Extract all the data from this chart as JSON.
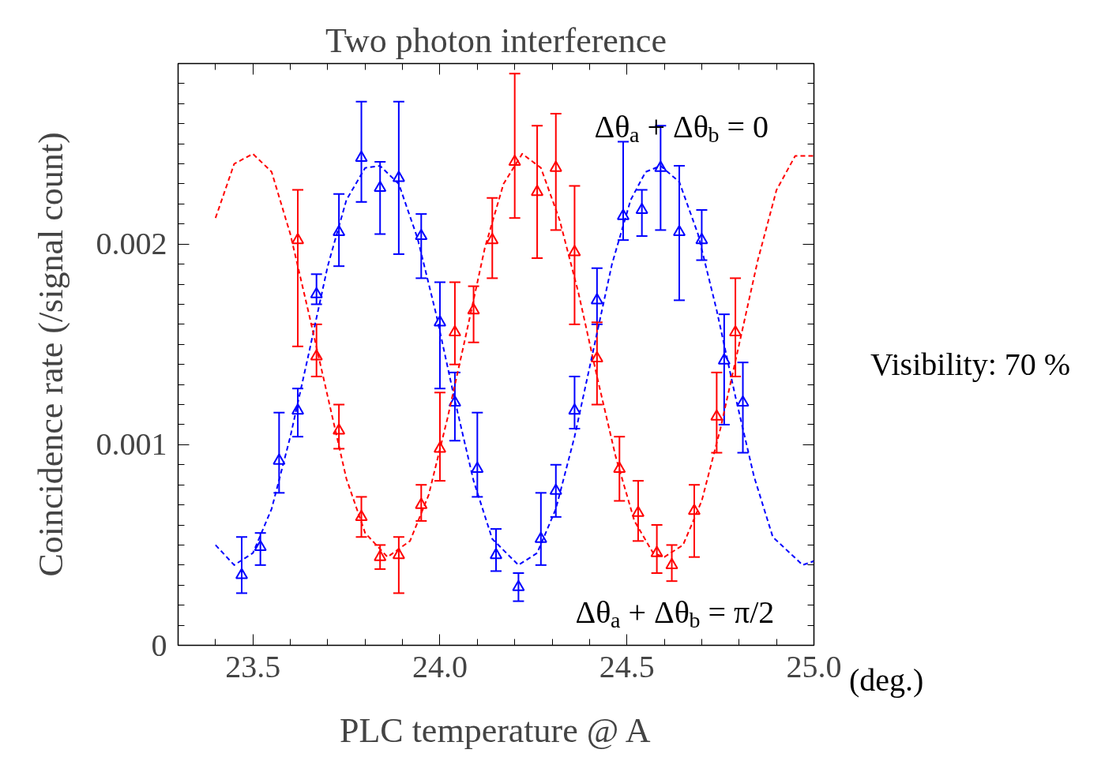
{
  "chart_data": {
    "type": "scatter",
    "title": "Two photon interference",
    "xlabel": "PLC temperature @ A",
    "ylabel": "Coincidence rate (/signal count)",
    "annotations": [
      "Δθ$_{a}$ + Δθ$_{b}$ = 0",
      "Δθ$_{a}$ + Δθ$_{b}$ = π/2",
      "Visibility: 70 %",
      "(deg.)"
    ],
    "xlim": [
      23.3,
      25.0
    ],
    "ylim": [
      0,
      0.0029
    ],
    "xticks": [
      {
        "value": 23.4,
        "label": null
      },
      23.5,
      {
        "value": 23.6,
        "label": null
      },
      {
        "value": 23.7,
        "label": null
      },
      {
        "value": 23.8,
        "label": null
      },
      {
        "value": 23.9,
        "label": null
      },
      {
        "value": 24.0,
        "label": "24.0"
      },
      {
        "value": 24.1,
        "label": null
      },
      {
        "value": 24.2,
        "label": null
      },
      {
        "value": 24.3,
        "label": null
      },
      {
        "value": 24.4,
        "label": null
      },
      24.5,
      {
        "value": 24.6,
        "label": null
      },
      {
        "value": 24.7,
        "label": null
      },
      {
        "value": 24.8,
        "label": null
      },
      {
        "value": 24.9,
        "label": null
      },
      {
        "value": 25.0,
        "label": "25.0"
      }
    ],
    "yticks": [
      0,
      {
        "value": 0.0001,
        "label": null
      },
      {
        "value": 0.0002,
        "label": null
      },
      {
        "value": 0.0003,
        "label": null
      },
      {
        "value": 0.0004,
        "label": null
      },
      {
        "value": 0.0005,
        "label": null
      },
      {
        "value": 0.0006,
        "label": null
      },
      {
        "value": 0.0007,
        "label": null
      },
      {
        "value": 0.0008,
        "label": null
      },
      {
        "value": 0.0009,
        "label": null
      },
      0.001,
      {
        "value": 0.0011,
        "label": null
      },
      {
        "value": 0.0012,
        "label": null
      },
      {
        "value": 0.0013,
        "label": null
      },
      {
        "value": 0.0014,
        "label": null
      },
      {
        "value": 0.0015,
        "label": null
      },
      {
        "value": 0.0016,
        "label": null
      },
      {
        "value": 0.0017,
        "label": null
      },
      {
        "value": 0.0018,
        "label": null
      },
      {
        "value": 0.0019,
        "label": null
      },
      0.002,
      {
        "value": 0.0021,
        "label": null
      },
      {
        "value": 0.0022,
        "label": null
      },
      {
        "value": 0.0023,
        "label": null
      },
      {
        "value": 0.0024,
        "label": null
      },
      {
        "value": 0.0025,
        "label": null
      },
      {
        "value": 0.0026,
        "label": null
      },
      {
        "value": 0.0027,
        "label": null
      },
      {
        "value": 0.0028,
        "label": null
      }
    ],
    "grid": false,
    "marker": "triangle",
    "series": [
      {
        "color": "#0000ff",
        "x": [
          23.47,
          23.52,
          23.57,
          23.62,
          23.67,
          23.73,
          23.79,
          23.84,
          23.89,
          23.95,
          24.0,
          24.04,
          24.1,
          24.15,
          24.21,
          24.27,
          24.31,
          24.36,
          24.42,
          24.49,
          24.54,
          24.59,
          24.64,
          24.7,
          24.76,
          24.81
        ],
        "values": [
          0.00035,
          0.00049,
          0.00092,
          0.00117,
          0.00175,
          0.00206,
          0.00243,
          0.00228,
          0.00233,
          0.00204,
          0.00161,
          0.00121,
          0.00088,
          0.00045,
          0.00029,
          0.00053,
          0.00077,
          0.00117,
          0.00172,
          0.00214,
          0.00217,
          0.00238,
          0.00206,
          0.00202,
          0.00142,
          0.00121
        ],
        "errors": [
          [
            0.00026,
            0.00054
          ],
          [
            0.0004,
            0.00056
          ],
          [
            0.00076,
            0.00116
          ],
          [
            0.00104,
            0.00128
          ],
          [
            0.0017,
            0.00185
          ],
          [
            0.00189,
            0.00225
          ],
          [
            0.00221,
            0.00271
          ],
          [
            0.00205,
            0.00241
          ],
          [
            0.00195,
            0.00271
          ],
          [
            0.00183,
            0.00215
          ],
          [
            0.00128,
            0.00181
          ],
          [
            0.00102,
            0.00136
          ],
          [
            0.00074,
            0.00116
          ],
          [
            0.00037,
            0.00058
          ],
          [
            0.00022,
            0.00036
          ],
          [
            0.0004,
            0.00076
          ],
          [
            0.00064,
            0.0009
          ],
          [
            0.00108,
            0.00134
          ],
          [
            0.0016,
            0.00188
          ],
          [
            0.00202,
            0.00251
          ],
          [
            0.00204,
            0.00227
          ],
          [
            0.00207,
            0.00259
          ],
          [
            0.00172,
            0.00239
          ],
          [
            0.00192,
            0.00217
          ],
          [
            0.0011,
            0.00165
          ],
          [
            0.00096,
            0.00141
          ]
        ]
      },
      {
        "color": "#ff0000",
        "x": [
          23.62,
          23.67,
          23.73,
          23.79,
          23.84,
          23.89,
          23.95,
          24.0,
          24.04,
          24.09,
          24.14,
          24.2,
          24.26,
          24.31,
          24.36,
          24.42,
          24.48,
          24.53,
          24.58,
          24.62,
          24.68,
          24.74,
          24.79
        ],
        "values": [
          0.00202,
          0.00144,
          0.00107,
          0.00064,
          0.00044,
          0.00045,
          0.0007,
          0.00098,
          0.00156,
          0.00167,
          0.00202,
          0.00241,
          0.00226,
          0.00238,
          0.00196,
          0.00143,
          0.00088,
          0.00066,
          0.00046,
          0.0004,
          0.00067,
          0.00114,
          0.00156
        ],
        "errors": [
          [
            0.00149,
            0.00227
          ],
          [
            0.00134,
            0.0016
          ],
          [
            0.00098,
            0.0012
          ],
          [
            0.00054,
            0.00074
          ],
          [
            0.00038,
            0.0005
          ],
          [
            0.00026,
            0.00054
          ],
          [
            0.00062,
            0.0008
          ],
          [
            0.00082,
            0.00126
          ],
          [
            0.0014,
            0.00181
          ],
          [
            0.00151,
            0.00179
          ],
          [
            0.00183,
            0.00223
          ],
          [
            0.00213,
            0.00285
          ],
          [
            0.00193,
            0.00259
          ],
          [
            0.00207,
            0.00265
          ],
          [
            0.0016,
            0.00229
          ],
          [
            0.0012,
            0.00161
          ],
          [
            0.00072,
            0.00104
          ],
          [
            0.00052,
            0.00082
          ],
          [
            0.00036,
            0.0006
          ],
          [
            0.00032,
            0.0005
          ],
          [
            0.00044,
            0.0008
          ],
          [
            0.00096,
            0.00136
          ],
          [
            0.00134,
            0.00183
          ]
        ]
      },
      {
        "type": "line",
        "line_style": "dashed",
        "marker": "none",
        "color": "#0000ff",
        "x": [
          23.4,
          23.45,
          23.5,
          23.55,
          23.6,
          23.65,
          23.7,
          23.75,
          23.8,
          23.84,
          23.89,
          23.94,
          23.99,
          24.04,
          24.09,
          24.14,
          24.21,
          24.26,
          24.31,
          24.36,
          24.41,
          24.46,
          24.51,
          24.55,
          24.59,
          24.64,
          24.69,
          24.74,
          24.79,
          24.84,
          24.89,
          24.97,
          25.0
        ],
        "values": [
          0.0005,
          0.0004,
          0.00046,
          0.00068,
          0.00104,
          0.00146,
          0.00189,
          0.00222,
          0.00238,
          0.00239,
          0.0023,
          0.00203,
          0.00165,
          0.00122,
          0.00082,
          0.00053,
          0.0004,
          0.00046,
          0.00068,
          0.00104,
          0.00147,
          0.0019,
          0.00222,
          0.00236,
          0.00239,
          0.00231,
          0.00205,
          0.00167,
          0.00124,
          0.00084,
          0.00054,
          0.0004,
          0.00042
        ]
      },
      {
        "type": "line",
        "line_style": "dashed",
        "marker": "none",
        "color": "#ff0000",
        "x": [
          23.4,
          23.45,
          23.5,
          23.55,
          23.6,
          23.65,
          23.7,
          23.75,
          23.8,
          23.86,
          23.92,
          23.97,
          24.02,
          24.07,
          24.12,
          24.17,
          24.22,
          24.27,
          24.32,
          24.37,
          24.42,
          24.47,
          24.52,
          24.57,
          24.6,
          24.65,
          24.7,
          24.75,
          24.8,
          24.85,
          24.9,
          24.95,
          25.0
        ],
        "values": [
          0.00213,
          0.0024,
          0.00245,
          0.00236,
          0.00205,
          0.00165,
          0.00124,
          0.00083,
          0.00056,
          0.00044,
          0.00052,
          0.00075,
          0.00113,
          0.00155,
          0.00198,
          0.0023,
          0.00245,
          0.00238,
          0.00212,
          0.00176,
          0.00134,
          0.00094,
          0.00062,
          0.00046,
          0.00044,
          0.0005,
          0.00072,
          0.00108,
          0.0015,
          0.00192,
          0.00227,
          0.00244,
          0.00244
        ]
      }
    ]
  }
}
